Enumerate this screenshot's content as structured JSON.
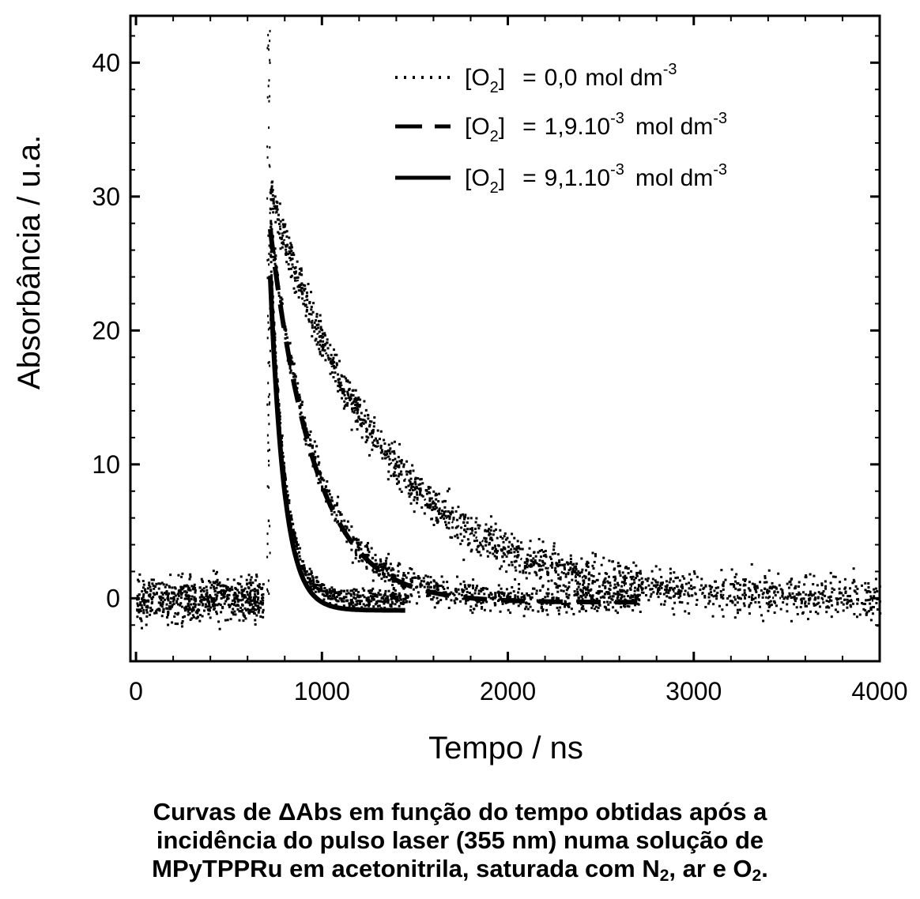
{
  "chart_data": {
    "type": "scatter",
    "title": "",
    "xlabel": "Tempo  /  ns",
    "ylabel": "Absorbância  /  u.a.",
    "xlim": [
      -30,
      4000
    ],
    "ylim": [
      -4.7,
      43.5
    ],
    "xticks": [
      0,
      1000,
      2000,
      3000,
      4000
    ],
    "yticks": [
      0,
      10,
      20,
      30,
      40
    ],
    "grid": false,
    "legend_position": "top-right",
    "pulse_time_ns": 710,
    "baseline": 0,
    "series": [
      {
        "label_conc": "0,0",
        "line_style": "dotted",
        "color": "#000000",
        "peak": 31,
        "decay_tau_ns": 600,
        "end_ns": 4000
      },
      {
        "label_conc": "1,9.10",
        "line_style": "dashed",
        "color": "#000000",
        "peak": 29,
        "decay_tau_ns": 240,
        "end_ns": 2700
      },
      {
        "label_conc": "9,1.10",
        "line_style": "solid",
        "color": "#000000",
        "peak": 29,
        "decay_tau_ns": 75,
        "end_ns": 1450
      }
    ],
    "legend": {
      "species": "[O",
      "species_sub": "2",
      "species_close": "]",
      "equals": "=",
      "unit": "mol dm",
      "exponent": "-3",
      "exponent_0": "-3"
    }
  },
  "caption": {
    "line1": "Curvas de ΔAbs em função do tempo obtidas após a",
    "line2": "incidência do pulso laser (355 nm) numa solução de",
    "line3_a": "MPyTPPRu em acetonitrila, saturada com N",
    "line3_sub1": "2",
    "line3_b": ", ar e O",
    "line3_sub2": "2",
    "line3_c": "."
  }
}
